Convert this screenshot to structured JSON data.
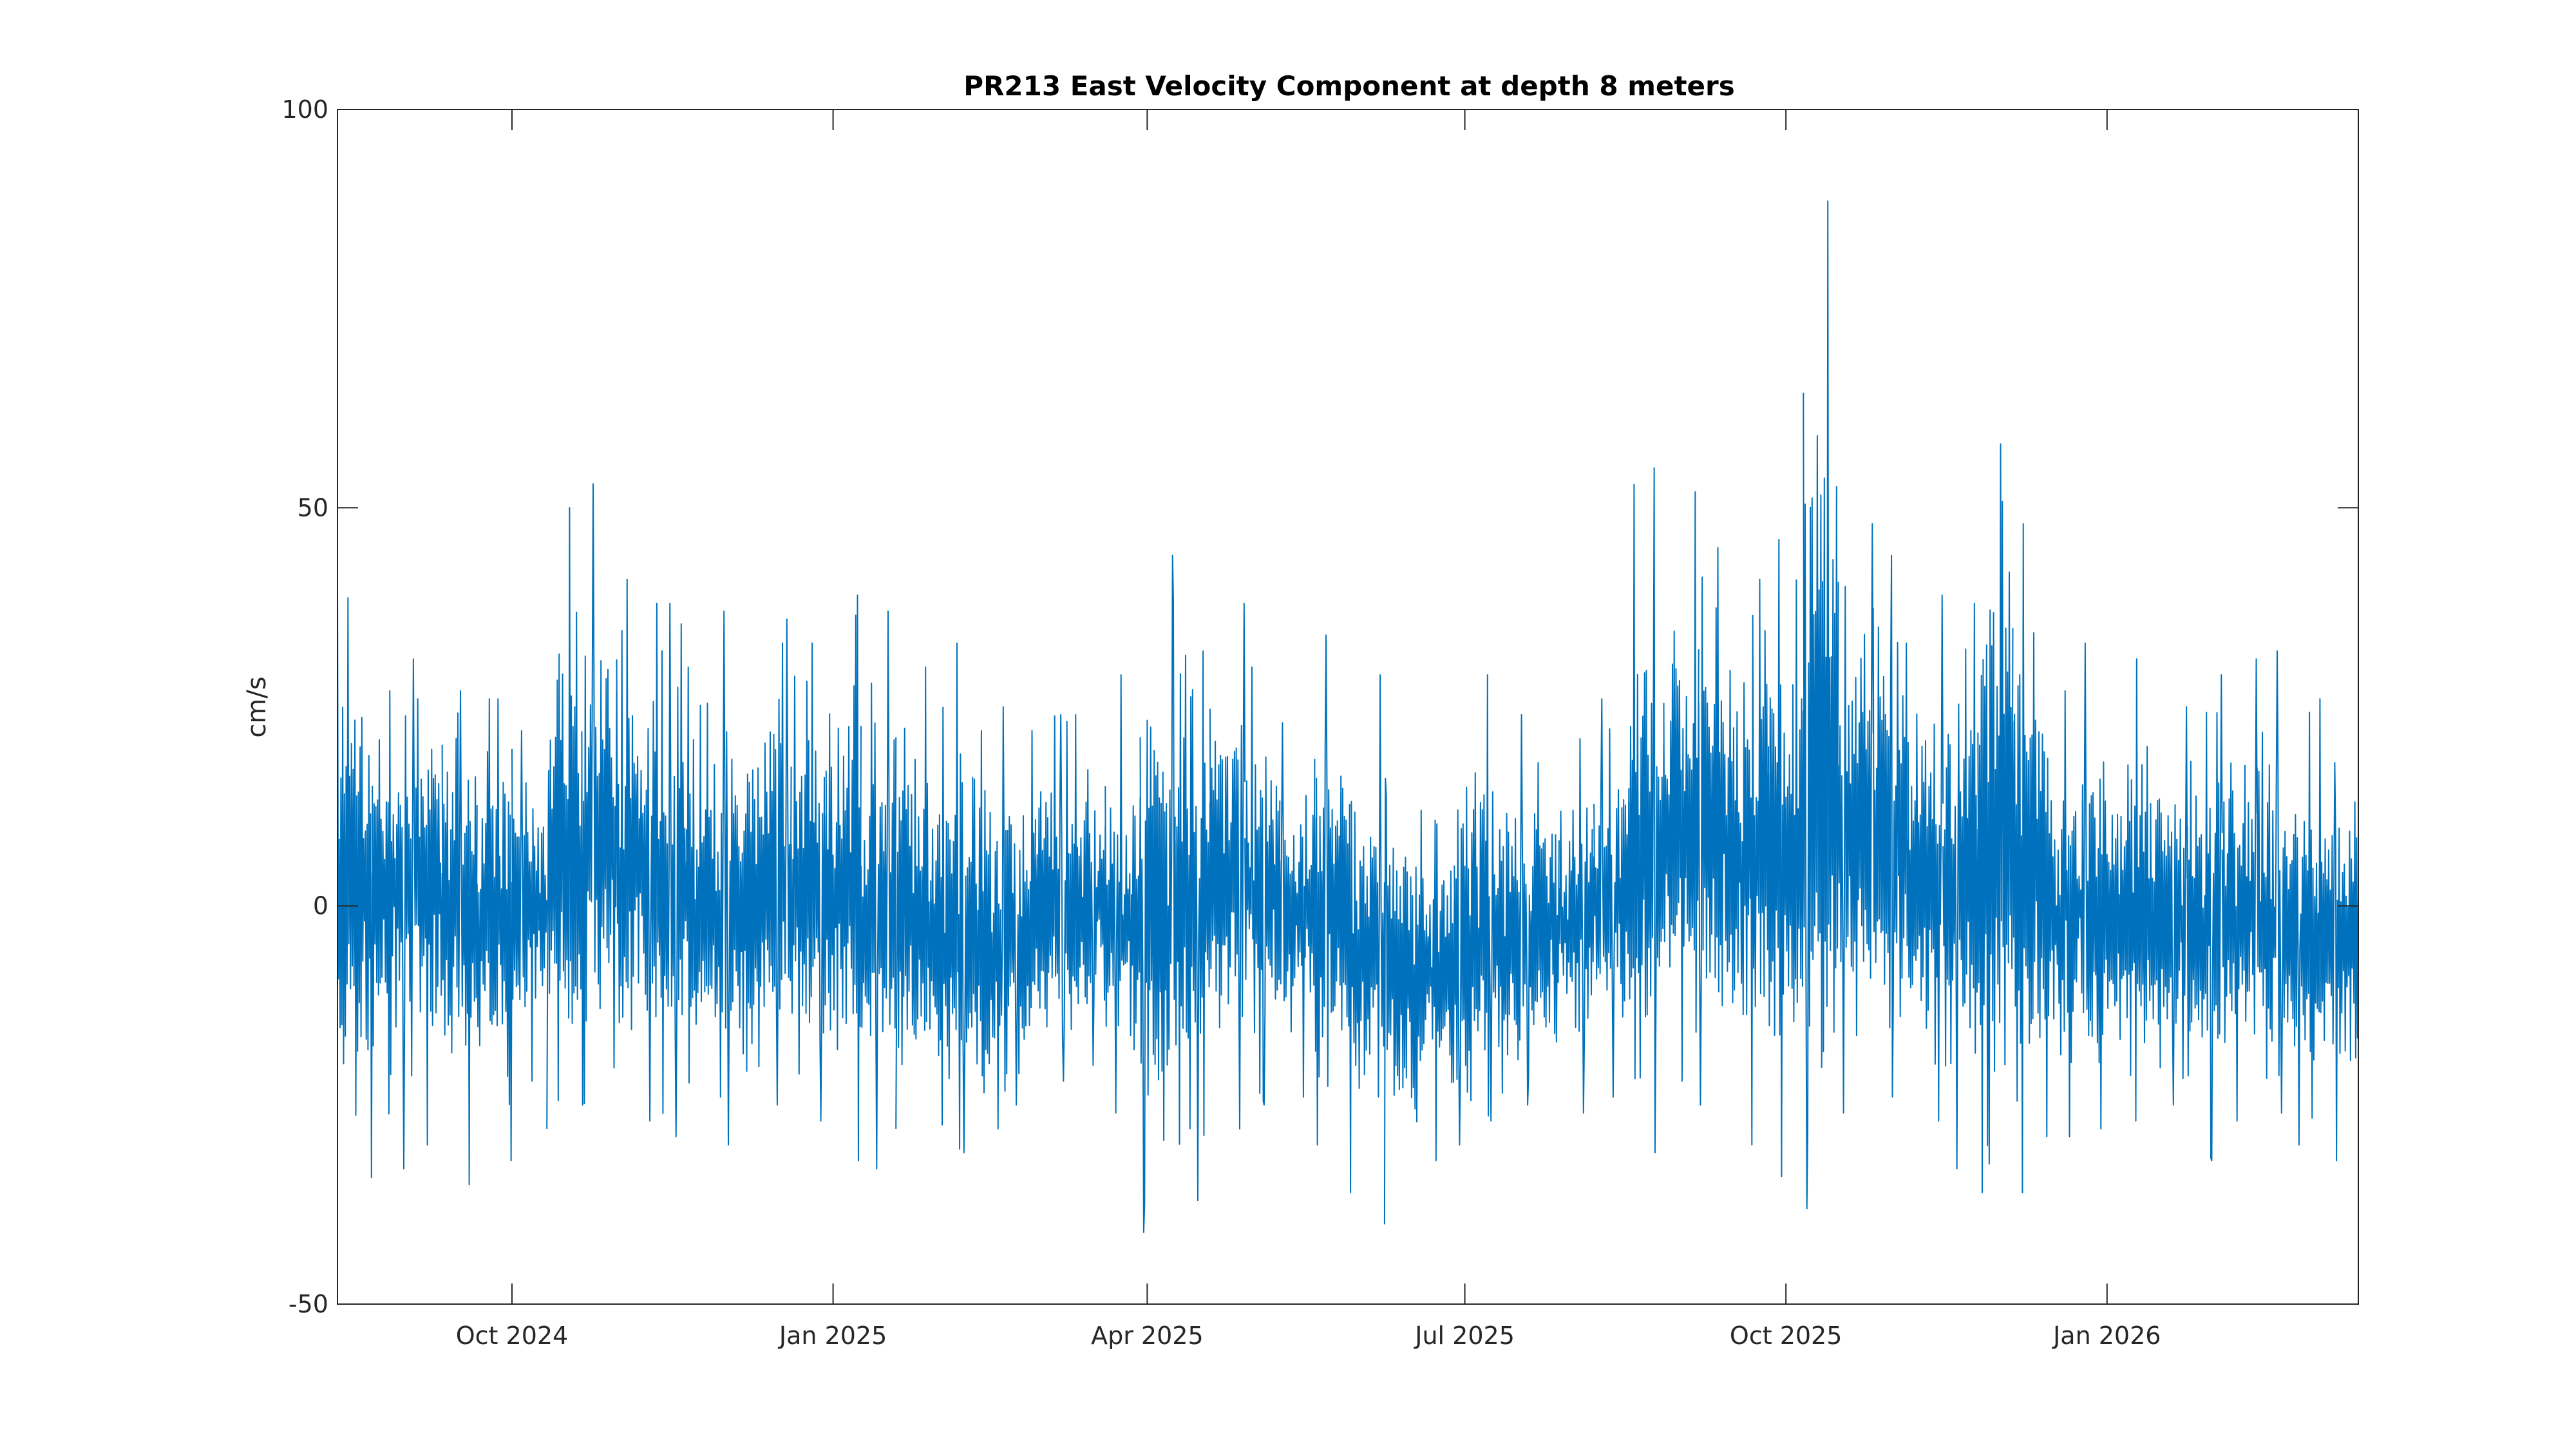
{
  "chart_data": {
    "type": "line",
    "title": "PR213 East Velocity Component at depth 8 meters",
    "xlabel": "",
    "ylabel": "cm/s",
    "xlim": [
      "2024-08-12",
      "2026-03-14"
    ],
    "ylim": [
      -50,
      100
    ],
    "x_ticks": [
      {
        "date": "2024-10-01",
        "label": "Oct 2024"
      },
      {
        "date": "2025-01-01",
        "label": "Jan 2025"
      },
      {
        "date": "2025-04-01",
        "label": "Apr 2025"
      },
      {
        "date": "2025-07-01",
        "label": "Jul 2025"
      },
      {
        "date": "2025-10-01",
        "label": "Oct 2025"
      },
      {
        "date": "2026-01-01",
        "label": "Jan 2026"
      }
    ],
    "y_ticks": [
      {
        "value": 100,
        "label": "100"
      },
      {
        "value": 50,
        "label": "50"
      },
      {
        "value": 0,
        "label": "0"
      },
      {
        "value": -50,
        "label": "-50"
      }
    ],
    "grid": false,
    "legend": "none",
    "series_color": "#0072BD",
    "series_envelope_10day": {
      "columns": [
        "window_start",
        "min",
        "max",
        "mean"
      ],
      "rows": [
        [
          "2024-08-12",
          -37,
          40,
          2
        ],
        [
          "2024-08-22",
          -33,
          27,
          3
        ],
        [
          "2024-09-01",
          -30,
          31,
          3
        ],
        [
          "2024-09-11",
          -35,
          27,
          0
        ],
        [
          "2024-09-21",
          -32,
          26,
          -2
        ],
        [
          "2024-10-01",
          -22,
          22,
          0
        ],
        [
          "2024-10-11",
          -28,
          50,
          4
        ],
        [
          "2024-10-21",
          -25,
          53,
          6
        ],
        [
          "2024-10-31",
          -27,
          41,
          3
        ],
        [
          "2024-11-10",
          -29,
          38,
          0
        ],
        [
          "2024-11-20",
          -24,
          30,
          -2
        ],
        [
          "2024-11-30",
          -30,
          37,
          -1
        ],
        [
          "2024-12-10",
          -25,
          36,
          0
        ],
        [
          "2024-12-20",
          -27,
          33,
          1
        ],
        [
          "2024-12-30",
          -32,
          39,
          2
        ],
        [
          "2025-01-09",
          -33,
          37,
          -1
        ],
        [
          "2025-01-19",
          -28,
          30,
          -3
        ],
        [
          "2025-01-29",
          -31,
          33,
          -6
        ],
        [
          "2025-02-08",
          -28,
          22,
          -8
        ],
        [
          "2025-02-18",
          -25,
          25,
          -6
        ],
        [
          "2025-02-28",
          -22,
          24,
          -3
        ],
        [
          "2025-03-10",
          -20,
          24,
          0
        ],
        [
          "2025-03-20",
          -26,
          29,
          -2
        ],
        [
          "2025-03-30",
          -41,
          44,
          -4
        ],
        [
          "2025-04-09",
          -37,
          32,
          0
        ],
        [
          "2025-04-19",
          -28,
          38,
          3
        ],
        [
          "2025-04-29",
          -25,
          30,
          2
        ],
        [
          "2025-05-09",
          -24,
          23,
          -1
        ],
        [
          "2025-05-19",
          -30,
          34,
          -3
        ],
        [
          "2025-05-29",
          -36,
          29,
          -7
        ],
        [
          "2025-06-08",
          -40,
          16,
          -9
        ],
        [
          "2025-06-18",
          -32,
          12,
          -8
        ],
        [
          "2025-06-28",
          -30,
          29,
          -6
        ],
        [
          "2025-07-08",
          -27,
          24,
          -5
        ],
        [
          "2025-07-18",
          -25,
          18,
          -4
        ],
        [
          "2025-07-28",
          -26,
          21,
          -2
        ],
        [
          "2025-08-07",
          -24,
          26,
          1
        ],
        [
          "2025-08-17",
          -31,
          55,
          4
        ],
        [
          "2025-08-27",
          -22,
          52,
          8
        ],
        [
          "2025-09-06",
          -25,
          45,
          8
        ],
        [
          "2025-09-16",
          -30,
          41,
          7
        ],
        [
          "2025-09-26",
          -34,
          46,
          8
        ],
        [
          "2025-10-06",
          -38,
          88.5,
          10
        ],
        [
          "2025-10-16",
          -26,
          48,
          9
        ],
        [
          "2025-10-26",
          -24,
          44,
          6
        ],
        [
          "2025-11-05",
          -27,
          39,
          3
        ],
        [
          "2025-11-15",
          -33,
          38,
          2
        ],
        [
          "2025-11-25",
          -36,
          58,
          7
        ],
        [
          "2025-12-05",
          -36,
          48,
          5
        ],
        [
          "2025-12-15",
          -29,
          27,
          -1
        ],
        [
          "2025-12-25",
          -28,
          33,
          -3
        ],
        [
          "2026-01-04",
          -27,
          31,
          -2
        ],
        [
          "2026-01-14",
          -25,
          25,
          -3
        ],
        [
          "2026-01-24",
          -32,
          29,
          -3
        ],
        [
          "2026-02-03",
          -27,
          31,
          -2
        ],
        [
          "2026-02-13",
          -26,
          32,
          -2
        ],
        [
          "2026-02-23",
          -30,
          26,
          -3
        ],
        [
          "2026-03-05",
          -32,
          18,
          -4
        ]
      ]
    }
  }
}
